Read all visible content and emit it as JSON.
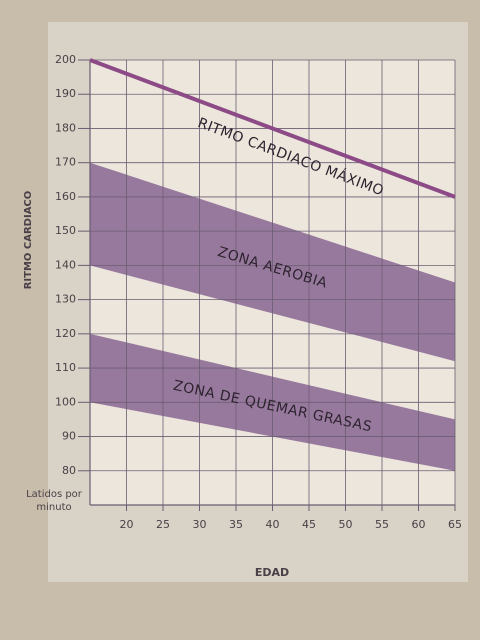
{
  "chart_data": {
    "type": "line",
    "y_label": "RITMO CARDIACO",
    "x_label": "EDAD",
    "unit_label": [
      "Latidos por",
      "minuto"
    ],
    "xlim": [
      15,
      65
    ],
    "xticks": [
      20,
      25,
      30,
      35,
      40,
      45,
      50,
      55,
      60,
      65
    ],
    "ylim": [
      70,
      200
    ],
    "yticks": [
      80,
      90,
      100,
      110,
      120,
      130,
      140,
      150,
      160,
      170,
      180,
      190,
      200
    ],
    "grid": true,
    "series": [
      {
        "name": "RITMO CARDIACO MÁXIMO",
        "color": "#8c4a86",
        "x": [
          15,
          65
        ],
        "values": [
          200,
          160
        ]
      }
    ],
    "bands": [
      {
        "name": "ZONA AEROBIA",
        "color": "#8a6593",
        "x": [
          15,
          65
        ],
        "upper": [
          170,
          135
        ],
        "lower": [
          140,
          112
        ]
      },
      {
        "name": "ZONA DE QUEMAR GRASAS",
        "color": "#8a6593",
        "x": [
          15,
          65
        ],
        "upper": [
          120,
          95
        ],
        "lower": [
          100,
          80
        ]
      }
    ]
  }
}
